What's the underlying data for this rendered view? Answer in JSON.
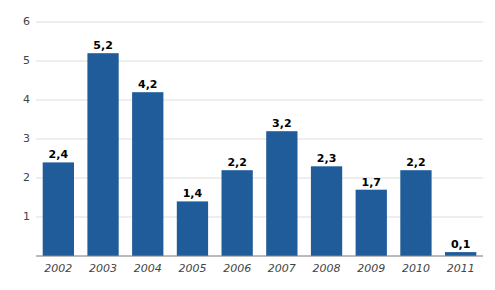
{
  "chart_data": {
    "type": "bar",
    "categories": [
      "2002",
      "2003",
      "2004",
      "2005",
      "2006",
      "2007",
      "2008",
      "2009",
      "2010",
      "2011"
    ],
    "values": [
      2.4,
      5.2,
      4.2,
      1.4,
      2.2,
      3.2,
      2.3,
      1.7,
      2.2,
      0.1
    ],
    "value_labels": [
      "2,4",
      "5,2",
      "4,2",
      "1,4",
      "2,2",
      "3,2",
      "2,3",
      "1,7",
      "2,2",
      "0,1"
    ],
    "color": "#1F5C99",
    "ylim": [
      0,
      6
    ],
    "yticks": [
      {
        "value": 0,
        "label": null
      },
      1,
      2,
      3,
      4,
      5,
      6
    ],
    "grid": true,
    "data_labels": true
  }
}
